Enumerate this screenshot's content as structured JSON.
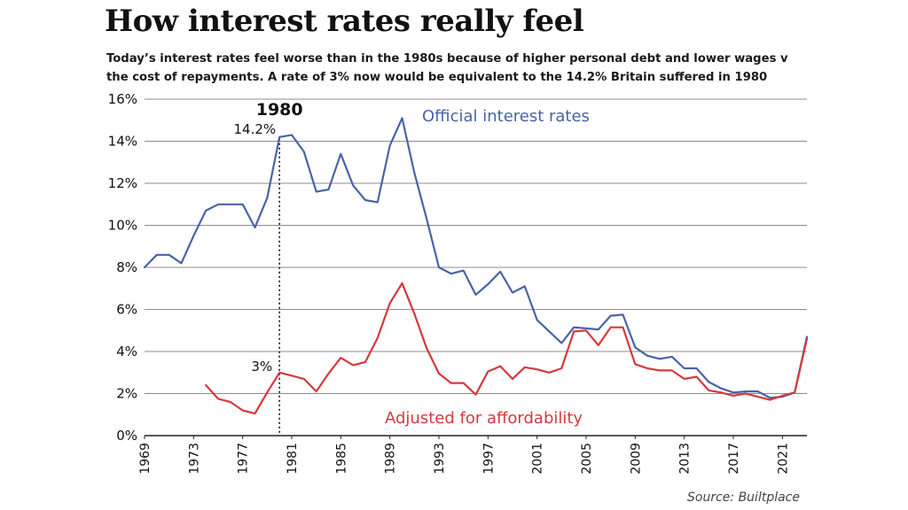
{
  "title": "How interest rates really feel",
  "subtitle_lines": [
    "Today’s interest rates feel worse than in the 1980s because of higher personal debt and lower wages v",
    "the cost of repayments. A rate of 3% now would be equivalent to the 14.2% Britain suffered in 1980"
  ],
  "source": "Source: Builtplace",
  "colors": {
    "official": "#4a63a8",
    "adjusted": "#d6393c",
    "grid": "#8c8c8c"
  },
  "chart_data": {
    "type": "line",
    "title": "How interest rates really feel",
    "xlabel": "",
    "ylabel": "",
    "xlim": [
      1969,
      2023
    ],
    "ylim": [
      0,
      16
    ],
    "grid": true,
    "y_ticks": [
      0,
      2,
      4,
      6,
      8,
      10,
      12,
      14,
      16
    ],
    "y_tick_labels": [
      "0%",
      "2%",
      "4%",
      "6%",
      "8%",
      "10%",
      "12%",
      "14%",
      "16%"
    ],
    "x_ticks": [
      1969,
      1973,
      1977,
      1981,
      1985,
      1989,
      1993,
      1997,
      2001,
      2005,
      2009,
      2013,
      2017,
      2021
    ],
    "x_tick_labels": [
      "1969",
      "1973",
      "1977",
      "1981",
      "1985",
      "1989",
      "1993",
      "1997",
      "2001",
      "2005",
      "2009",
      "2013",
      "2017",
      "2021"
    ],
    "annotations": [
      {
        "text": "1980",
        "x": 1980
      },
      {
        "text": "14.2%",
        "x": 1980,
        "y": 14.2
      },
      {
        "text": "3%",
        "x": 1980,
        "y": 3.0
      }
    ],
    "series": [
      {
        "name": "Official interest rates",
        "x": [
          1969,
          1970,
          1971,
          1972,
          1973,
          1974,
          1975,
          1976,
          1977,
          1978,
          1979,
          1980,
          1981,
          1982,
          1983,
          1984,
          1985,
          1986,
          1987,
          1988,
          1989,
          1990,
          1991,
          1992,
          1993,
          1994,
          1995,
          1996,
          1997,
          1998,
          1999,
          2000,
          2001,
          2002,
          2003,
          2004,
          2005,
          2006,
          2007,
          2008,
          2009,
          2010,
          2011,
          2012,
          2013,
          2014,
          2015,
          2016,
          2017,
          2018,
          2019,
          2020,
          2021,
          2022,
          2023
        ],
        "values": [
          8.0,
          8.6,
          8.6,
          8.2,
          9.5,
          10.7,
          11.0,
          11.0,
          11.0,
          9.9,
          11.3,
          14.2,
          14.3,
          13.5,
          11.6,
          11.7,
          13.4,
          11.9,
          11.2,
          11.1,
          13.8,
          15.1,
          12.5,
          10.3,
          8.0,
          7.7,
          7.85,
          6.7,
          7.2,
          7.8,
          6.8,
          7.1,
          5.5,
          4.95,
          4.4,
          5.15,
          5.1,
          5.05,
          5.7,
          5.75,
          4.2,
          3.8,
          3.65,
          3.75,
          3.2,
          3.2,
          2.55,
          2.25,
          2.05,
          2.1,
          2.1,
          1.8,
          1.85,
          2.05,
          4.7
        ]
      },
      {
        "name": "Adjusted for affordability",
        "x": [
          1974,
          1975,
          1976,
          1977,
          1978,
          1979,
          1980,
          1981,
          1982,
          1983,
          1984,
          1985,
          1986,
          1987,
          1988,
          1989,
          1990,
          1991,
          1992,
          1993,
          1994,
          1995,
          1996,
          1997,
          1998,
          1999,
          2000,
          2001,
          2002,
          2003,
          2004,
          2005,
          2006,
          2007,
          2008,
          2009,
          2010,
          2011,
          2012,
          2013,
          2014,
          2015,
          2016,
          2017,
          2018,
          2019,
          2020,
          2021,
          2022,
          2023
        ],
        "values": [
          2.4,
          1.75,
          1.6,
          1.2,
          1.05,
          2.05,
          3.0,
          2.85,
          2.7,
          2.1,
          2.95,
          3.7,
          3.35,
          3.5,
          4.65,
          6.3,
          7.25,
          5.8,
          4.15,
          2.95,
          2.5,
          2.5,
          1.95,
          3.05,
          3.3,
          2.7,
          3.25,
          3.15,
          3.0,
          3.2,
          4.95,
          5.0,
          4.3,
          5.15,
          5.15,
          3.4,
          3.2,
          3.1,
          3.1,
          2.7,
          2.8,
          2.15,
          2.05,
          1.9,
          2.0,
          1.85,
          1.7,
          1.9,
          2.05,
          4.6
        ]
      }
    ]
  }
}
